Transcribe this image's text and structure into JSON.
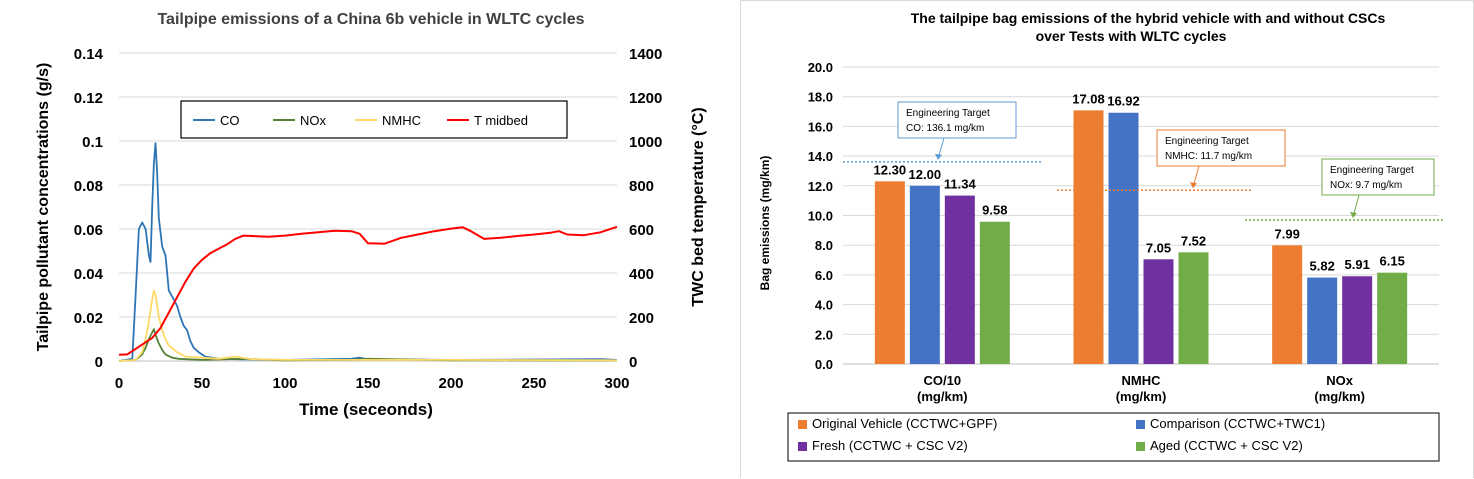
{
  "chart_data": [
    {
      "type": "line",
      "title": "Tailpipe emissions of a China 6b vehicle in WLTC cycles",
      "xlabel": "Time (seceonds)",
      "ylabel": "Tailpipe pollutant concentrations (g/s)",
      "y2label": "TWC bed temperature (°C)",
      "xlim": [
        0,
        300
      ],
      "ylim": [
        0,
        0.14
      ],
      "y2lim": [
        0,
        1400
      ],
      "x_ticks": [
        "0",
        "50",
        "100",
        "150",
        "200",
        "250",
        "300"
      ],
      "y_ticks": [
        "0",
        "0.02",
        "0.04",
        "0.06",
        "0.08",
        "0.1",
        "0.12",
        "0.14"
      ],
      "y2_ticks": [
        "0",
        "200",
        "400",
        "600",
        "800",
        "1000",
        "1200",
        "1400"
      ],
      "grid": "horizontal",
      "legend_position": "top-center",
      "series": [
        {
          "name": "CO",
          "axis": "left",
          "color": "#2e75b6",
          "points": [
            [
              0,
              0
            ],
            [
              8,
              0.001
            ],
            [
              10,
              0.03
            ],
            [
              12,
              0.06
            ],
            [
              14,
              0.063
            ],
            [
              16,
              0.06
            ],
            [
              18,
              0.048
            ],
            [
              19,
              0.045
            ],
            [
              20,
              0.07
            ],
            [
              21,
              0.09
            ],
            [
              22,
              0.099
            ],
            [
              23,
              0.085
            ],
            [
              24,
              0.065
            ],
            [
              26,
              0.052
            ],
            [
              28,
              0.048
            ],
            [
              30,
              0.032
            ],
            [
              33,
              0.028
            ],
            [
              35,
              0.025
            ],
            [
              37,
              0.02
            ],
            [
              39,
              0.016
            ],
            [
              41,
              0.014
            ],
            [
              43,
              0.009
            ],
            [
              45,
              0.006
            ],
            [
              48,
              0.004
            ],
            [
              52,
              0.002
            ],
            [
              60,
              0.001
            ],
            [
              70,
              0.0008
            ],
            [
              100,
              0.0005
            ],
            [
              140,
              0.001
            ],
            [
              145,
              0.0015
            ],
            [
              150,
              0.0008
            ],
            [
              200,
              0.0005
            ],
            [
              290,
              0.0008
            ],
            [
              300,
              0.0005
            ]
          ]
        },
        {
          "name": "NOx",
          "axis": "left",
          "color": "#548235",
          "points": [
            [
              0,
              0
            ],
            [
              10,
              0.0005
            ],
            [
              14,
              0.003
            ],
            [
              16,
              0.006
            ],
            [
              18,
              0.01
            ],
            [
              20,
              0.013
            ],
            [
              21,
              0.0145
            ],
            [
              22,
              0.012
            ],
            [
              24,
              0.008
            ],
            [
              26,
              0.005
            ],
            [
              28,
              0.003
            ],
            [
              32,
              0.0015
            ],
            [
              36,
              0.001
            ],
            [
              40,
              0.0008
            ],
            [
              50,
              0.0005
            ],
            [
              75,
              0.001
            ],
            [
              100,
              0.0003
            ],
            [
              140,
              0.0005
            ],
            [
              150,
              0.001
            ],
            [
              200,
              0.0003
            ],
            [
              300,
              0.0002
            ]
          ]
        },
        {
          "name": "NMHC",
          "axis": "left",
          "color": "#ffd966",
          "points": [
            [
              0,
              0
            ],
            [
              10,
              0.0005
            ],
            [
              14,
              0.004
            ],
            [
              16,
              0.01
            ],
            [
              18,
              0.018
            ],
            [
              20,
              0.028
            ],
            [
              21,
              0.032
            ],
            [
              22,
              0.03
            ],
            [
              24,
              0.02
            ],
            [
              26,
              0.014
            ],
            [
              28,
              0.01
            ],
            [
              30,
              0.007
            ],
            [
              35,
              0.004
            ],
            [
              40,
              0.002
            ],
            [
              50,
              0.0015
            ],
            [
              60,
              0.001
            ],
            [
              70,
              0.002
            ],
            [
              80,
              0.0008
            ],
            [
              100,
              0.0005
            ],
            [
              200,
              0.0005
            ],
            [
              300,
              0.0003
            ]
          ]
        },
        {
          "name": "T midbed",
          "axis": "right",
          "color": "#ff0000",
          "points": [
            [
              0,
              28
            ],
            [
              5,
              30
            ],
            [
              10,
              55
            ],
            [
              15,
              80
            ],
            [
              20,
              105
            ],
            [
              25,
              150
            ],
            [
              30,
              220
            ],
            [
              35,
              290
            ],
            [
              40,
              360
            ],
            [
              45,
              420
            ],
            [
              50,
              460
            ],
            [
              55,
              490
            ],
            [
              60,
              510
            ],
            [
              65,
              530
            ],
            [
              70,
              555
            ],
            [
              75,
              570
            ],
            [
              80,
              568
            ],
            [
              90,
              565
            ],
            [
              100,
              570
            ],
            [
              110,
              578
            ],
            [
              120,
              585
            ],
            [
              130,
              592
            ],
            [
              140,
              590
            ],
            [
              145,
              578
            ],
            [
              150,
              535
            ],
            [
              160,
              533
            ],
            [
              170,
              560
            ],
            [
              180,
              575
            ],
            [
              190,
              590
            ],
            [
              200,
              602
            ],
            [
              207,
              608
            ],
            [
              212,
              590
            ],
            [
              220,
              555
            ],
            [
              230,
              560
            ],
            [
              240,
              568
            ],
            [
              250,
              575
            ],
            [
              260,
              583
            ],
            [
              265,
              590
            ],
            [
              270,
              575
            ],
            [
              280,
              572
            ],
            [
              290,
              585
            ],
            [
              300,
              610
            ]
          ]
        }
      ]
    },
    {
      "type": "bar",
      "title": "The tailpipe bag emissions of the hybrid vehicle with and without CSCs",
      "subtitle": "over Tests with  WLTC cycles",
      "ylabel": "Bag emissions  (mg/km)",
      "ylim": [
        0,
        20
      ],
      "y_ticks": [
        "0.0",
        "2.0",
        "4.0",
        "6.0",
        "8.0",
        "10.0",
        "12.0",
        "14.0",
        "16.0",
        "18.0",
        "20.0"
      ],
      "grid": "horizontal",
      "legend_position": "bottom",
      "categories": [
        {
          "line1": "CO/10",
          "line2": "(mg/km)"
        },
        {
          "line1": "NMHC",
          "line2": "(mg/km)"
        },
        {
          "line1": "NOx",
          "line2": "(mg/km)"
        }
      ],
      "series": [
        {
          "name": "Original Vehicle (CCTWC+GPF)",
          "color": "#ed7d31",
          "values": [
            12.3,
            17.08,
            7.99
          ],
          "labels": [
            "12.30",
            "17.08",
            "7.99"
          ]
        },
        {
          "name": "Comparison (CCTWC+TWC1)",
          "color": "#4472c4",
          "values": [
            12.0,
            16.92,
            5.82
          ],
          "labels": [
            "12.00",
            "16.92",
            "5.82"
          ]
        },
        {
          "name": "Fresh (CCTWC + CSC V2)",
          "color": "#7030a0",
          "values": [
            11.34,
            7.05,
            5.91
          ],
          "labels": [
            "11.34",
            "7.05",
            "5.91"
          ]
        },
        {
          "name": "Aged (CCTWC + CSC V2)",
          "color": "#70ad47",
          "values": [
            9.58,
            7.52,
            6.15
          ],
          "labels": [
            "9.58",
            "7.52",
            "6.15"
          ]
        }
      ],
      "annotations": [
        {
          "line1": "Engineering Target",
          "line2": "CO: 136.1 mg/km",
          "color": "#5b9bd5",
          "target_value": 13.61,
          "category_index": 0
        },
        {
          "line1": "Engineering Target",
          "line2": "NMHC: 11.7 mg/km",
          "color": "#ed7d31",
          "target_value": 11.7,
          "category_index": 1
        },
        {
          "line1": "Engineering Target",
          "line2": "NOx: 9.7 mg/km",
          "color": "#70ad47",
          "target_value": 9.7,
          "category_index": 2
        }
      ]
    }
  ]
}
